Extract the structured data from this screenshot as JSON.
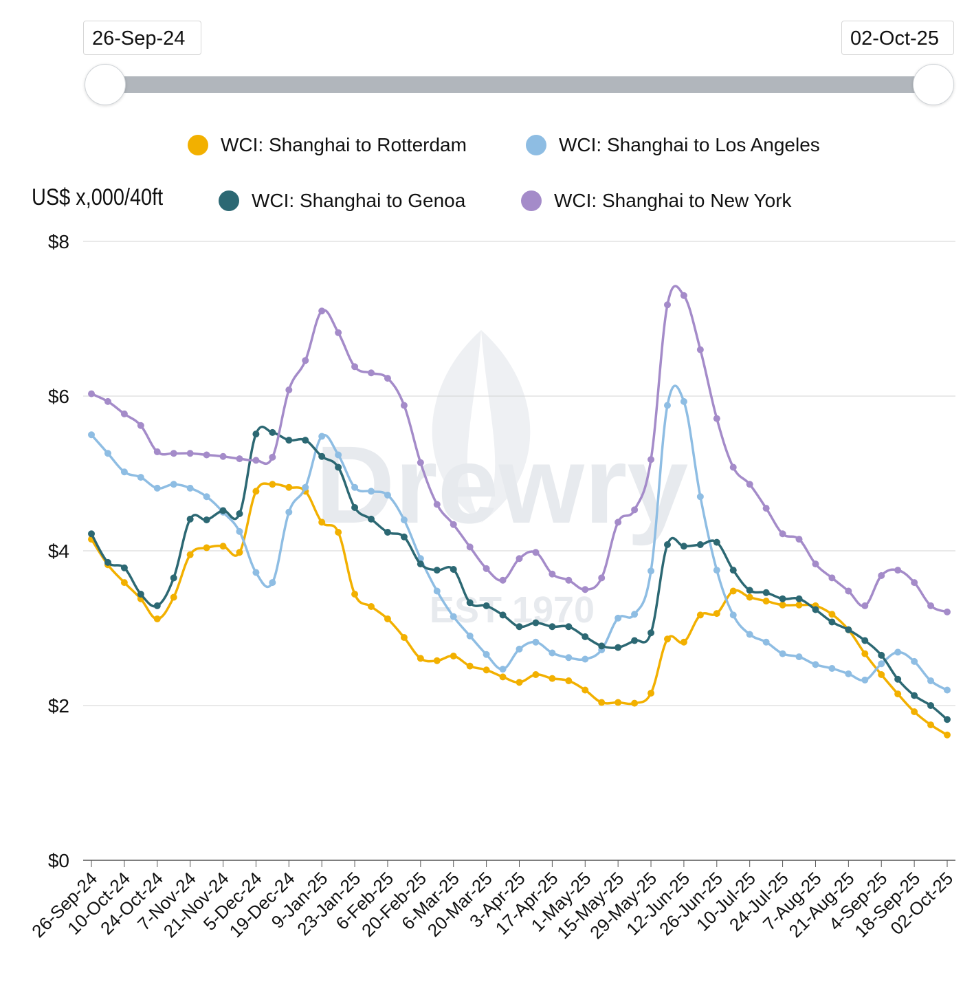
{
  "range": {
    "start": "26-Sep-24",
    "end": "02-Oct-25"
  },
  "unit_label": "US$ x,000/40ft",
  "watermark": {
    "brand": "Drewry",
    "est": "EST 1970"
  },
  "chart_data": {
    "type": "line",
    "ylim": [
      0,
      8
    ],
    "y_ticks": [
      "$0",
      "$2",
      "$4",
      "$6",
      "$8"
    ],
    "y_tick_values": [
      0,
      2,
      4,
      6,
      8
    ],
    "x_tick_labels": [
      "26-Sep-24",
      "10-Oct-24",
      "24-Oct-24",
      "7-Nov-24",
      "21-Nov-24",
      "5-Dec-24",
      "19-Dec-24",
      "9-Jan-25",
      "23-Jan-25",
      "6-Feb-25",
      "20-Feb-25",
      "6-Mar-25",
      "20-Mar-25",
      "3-Apr-25",
      "17-Apr-25",
      "1-May-25",
      "15-May-25",
      "29-May-25",
      "12-Jun-25",
      "26-Jun-25",
      "10-Jul-25",
      "24-Jul-25",
      "7-Aug-25",
      "21-Aug-25",
      "4-Sep-25",
      "18-Sep-25",
      "02-Oct-25"
    ],
    "legend_placement": "top",
    "grid": true,
    "series": [
      {
        "name": "WCI: Shanghai to Rotterdam",
        "color": "#f2b000",
        "values": [
          4.15,
          3.82,
          3.59,
          3.38,
          3.12,
          3.4,
          3.95,
          4.04,
          4.06,
          3.98,
          4.77,
          4.86,
          4.82,
          4.77,
          4.37,
          4.24,
          3.44,
          3.28,
          3.12,
          2.88,
          2.61,
          2.58,
          2.64,
          2.51,
          2.46,
          2.37,
          2.3,
          2.4,
          2.35,
          2.32,
          2.2,
          2.04,
          2.04,
          2.03,
          2.16,
          2.86,
          2.82,
          3.17,
          3.19,
          3.48,
          3.4,
          3.35,
          3.3,
          3.3,
          3.29,
          3.18,
          2.98,
          2.67,
          2.4,
          2.15,
          1.92,
          1.75,
          1.62
        ]
      },
      {
        "name": "WCI: Shanghai to Los Angeles",
        "color": "#8ebde3",
        "values": [
          5.5,
          5.26,
          5.02,
          4.95,
          4.81,
          4.86,
          4.81,
          4.7,
          4.5,
          4.25,
          3.72,
          3.59,
          4.5,
          4.82,
          5.48,
          5.24,
          4.82,
          4.77,
          4.72,
          4.4,
          3.9,
          3.48,
          3.15,
          2.9,
          2.66,
          2.47,
          2.73,
          2.82,
          2.68,
          2.62,
          2.6,
          2.72,
          3.13,
          3.18,
          3.74,
          5.88,
          5.93,
          4.7,
          3.75,
          3.17,
          2.92,
          2.82,
          2.67,
          2.63,
          2.53,
          2.48,
          2.41,
          2.33,
          2.54,
          2.69,
          2.57,
          2.32,
          2.2
        ]
      },
      {
        "name": "WCI: Shanghai to Genoa",
        "color": "#2c6873",
        "values": [
          4.22,
          3.85,
          3.78,
          3.44,
          3.29,
          3.65,
          4.41,
          4.4,
          4.52,
          4.48,
          5.51,
          5.53,
          5.43,
          5.43,
          5.22,
          5.08,
          4.56,
          4.41,
          4.24,
          4.18,
          3.83,
          3.75,
          3.76,
          3.33,
          3.29,
          3.17,
          3.02,
          3.07,
          3.02,
          3.02,
          2.89,
          2.77,
          2.75,
          2.84,
          2.94,
          4.08,
          4.06,
          4.08,
          4.11,
          3.75,
          3.49,
          3.46,
          3.38,
          3.38,
          3.24,
          3.08,
          2.98,
          2.84,
          2.65,
          2.34,
          2.13,
          2.0,
          1.82
        ]
      },
      {
        "name": "WCI: Shanghai to New York",
        "color": "#a48bc9",
        "values": [
          6.03,
          5.93,
          5.77,
          5.62,
          5.28,
          5.26,
          5.26,
          5.24,
          5.22,
          5.19,
          5.17,
          5.21,
          6.08,
          6.46,
          7.1,
          6.82,
          6.38,
          6.3,
          6.23,
          5.88,
          5.14,
          4.6,
          4.34,
          4.05,
          3.77,
          3.62,
          3.9,
          3.98,
          3.7,
          3.62,
          3.5,
          3.65,
          4.37,
          4.53,
          5.18,
          7.18,
          7.3,
          6.6,
          5.71,
          5.08,
          4.86,
          4.55,
          4.22,
          4.15,
          3.83,
          3.65,
          3.48,
          3.29,
          3.68,
          3.75,
          3.59,
          3.29,
          3.21
        ]
      }
    ]
  }
}
